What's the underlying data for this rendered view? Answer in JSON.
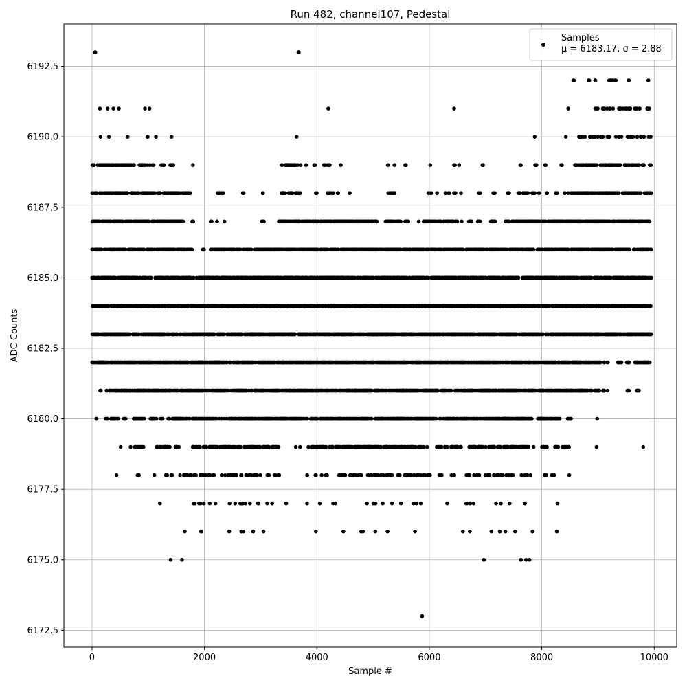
{
  "chart_data": {
    "type": "scatter",
    "title": "Run 482, channel107, Pedestal",
    "xlabel": "Sample #",
    "ylabel": "ADC Counts",
    "xlim": [
      -500,
      10400
    ],
    "ylim": [
      6171.9,
      6194.0
    ],
    "xticks": [
      0,
      2000,
      4000,
      6000,
      8000,
      10000
    ],
    "yticks": [
      6172.5,
      6175.0,
      6177.5,
      6180.0,
      6182.5,
      6185.0,
      6187.5,
      6190.0,
      6192.5
    ],
    "xtick_labels": [
      "0",
      "2000",
      "4000",
      "6000",
      "8000",
      "10000"
    ],
    "ytick_labels": [
      "6172.5",
      "6175.0",
      "6177.5",
      "6180.0",
      "6182.5",
      "6185.0",
      "6187.5",
      "6190.0",
      "6192.5"
    ],
    "grid": true,
    "legend_position": "top-right",
    "series": [
      {
        "name": "Samples",
        "color": "#000000",
        "marker": "circle",
        "stats_label": "μ = 6183.17, σ = 2.88",
        "sample_count": 10000,
        "level_ranges": [
          {
            "y": 6173,
            "x": [
              [
                5870,
                5870
              ]
            ]
          },
          {
            "y": 6175,
            "x": [
              [
                1400,
                1400
              ],
              [
                1600,
                1600
              ],
              [
                6970,
                6970
              ],
              [
                7630,
                7630
              ],
              [
                7720,
                7720
              ],
              [
                7780,
                7780
              ]
            ]
          },
          {
            "y": 6176,
            "x": [
              [
                1640,
                1700
              ],
              [
                1830,
                1970
              ],
              [
                2420,
                2480
              ],
              [
                2650,
                2730
              ],
              [
                2840,
                2870
              ],
              [
                3010,
                3070
              ],
              [
                3980,
                4050
              ],
              [
                4460,
                4490
              ],
              [
                4760,
                4850
              ],
              [
                5030,
                5090
              ],
              [
                5240,
                5270
              ],
              [
                5740,
                5760
              ],
              [
                6570,
                6610
              ],
              [
                6660,
                6730
              ],
              [
                7090,
                7110
              ],
              [
                7180,
                7260
              ],
              [
                7320,
                7390
              ],
              [
                7510,
                7530
              ],
              [
                7830,
                7850
              ],
              [
                8260,
                8270
              ]
            ]
          },
          {
            "y": 6177,
            "x": [
              [
                1200,
                1220
              ],
              [
                1800,
                2100
              ],
              [
                2150,
                2200
              ],
              [
                2440,
                2460
              ],
              [
                2500,
                2770
              ],
              [
                2800,
                2830
              ],
              [
                2920,
                3000
              ],
              [
                3090,
                3120
              ],
              [
                3190,
                3210
              ],
              [
                3450,
                3470
              ],
              [
                3810,
                3830
              ],
              [
                4050,
                4070
              ],
              [
                4250,
                4330
              ],
              [
                4880,
                4920
              ],
              [
                4980,
                5130
              ],
              [
                5160,
                5200
              ],
              [
                5330,
                5360
              ],
              [
                5470,
                5520
              ],
              [
                5710,
                5850
              ],
              [
                6260,
                6330
              ],
              [
                6640,
                6820
              ],
              [
                7170,
                7200
              ],
              [
                7270,
                7300
              ],
              [
                7410,
                7440
              ],
              [
                7700,
                7710
              ],
              [
                8280,
                8280
              ]
            ]
          },
          {
            "y": 6178,
            "x": [
              [
                420,
                440
              ],
              [
                800,
                850
              ],
              [
                1100,
                1120
              ],
              [
                1300,
                1340
              ],
              [
                1390,
                1430
              ],
              [
                1510,
                1780
              ],
              [
                1800,
                2110
              ],
              [
                2130,
                2190
              ],
              [
                2300,
                3000
              ],
              [
                3090,
                3190
              ],
              [
                3220,
                3330
              ],
              [
                3800,
                3840
              ],
              [
                3960,
                4000
              ],
              [
                4050,
                4190
              ],
              [
                4330,
                5350
              ],
              [
                5410,
                5480
              ],
              [
                5540,
                6040
              ],
              [
                6170,
                6260
              ],
              [
                6380,
                6470
              ],
              [
                6640,
                7490
              ],
              [
                7610,
                7810
              ],
              [
                8050,
                8090
              ],
              [
                8160,
                8270
              ],
              [
                8480,
                8500
              ]
            ]
          },
          {
            "y": 6179,
            "x": [
              [
                490,
                510
              ],
              [
                680,
                700
              ],
              [
                750,
                920
              ],
              [
                1150,
                1440
              ],
              [
                1480,
                1580
              ],
              [
                1780,
                3320
              ],
              [
                3620,
                3640
              ],
              [
                3700,
                3720
              ],
              [
                3820,
                4410
              ],
              [
                4440,
                6040
              ],
              [
                6120,
                6220
              ],
              [
                6260,
                7780
              ],
              [
                7850,
                7870
              ],
              [
                8000,
                8100
              ],
              [
                8200,
                8300
              ],
              [
                8360,
                8490
              ],
              [
                8970,
                8980
              ],
              [
                9800,
                9810
              ]
            ]
          },
          {
            "y": 6180,
            "x": [
              [
                60,
                80
              ],
              [
                240,
                280
              ],
              [
                330,
                490
              ],
              [
                550,
                600
              ],
              [
                740,
                940
              ],
              [
                1040,
                1150
              ],
              [
                1220,
                1260
              ],
              [
                1340,
                1390
              ],
              [
                1430,
                4010
              ],
              [
                4040,
                7820
              ],
              [
                7920,
                8320
              ],
              [
                8460,
                8520
              ],
              [
                8980,
                8990
              ]
            ]
          },
          {
            "y": 6181,
            "x": [
              [
                140,
                160
              ],
              [
                250,
                270
              ],
              [
                310,
                9030
              ],
              [
                9070,
                9120
              ],
              [
                9170,
                9180
              ],
              [
                9520,
                9550
              ],
              [
                9680,
                9740
              ]
            ]
          },
          {
            "y": 6182,
            "x": [
              [
                0,
                9050
              ],
              [
                9100,
                9120
              ],
              [
                9160,
                9180
              ],
              [
                9350,
                9420
              ],
              [
                9500,
                9570
              ],
              [
                9650,
                9920
              ]
            ]
          },
          {
            "y": 6183,
            "x": [
              [
                0,
                9950
              ]
            ]
          },
          {
            "y": 6184,
            "x": [
              [
                0,
                9950
              ]
            ]
          },
          {
            "y": 6185,
            "x": [
              [
                0,
                9950
              ]
            ]
          },
          {
            "y": 6186,
            "x": [
              [
                0,
                1780
              ],
              [
                1970,
                2010
              ],
              [
                2110,
                9950
              ]
            ]
          },
          {
            "y": 6187,
            "x": [
              [
                0,
                1620
              ],
              [
                1780,
                1810
              ],
              [
                2110,
                2130
              ],
              [
                2220,
                2240
              ],
              [
                2350,
                2360
              ],
              [
                3020,
                3060
              ],
              [
                3300,
                5070
              ],
              [
                5220,
                5500
              ],
              [
                5560,
                5640
              ],
              [
                5810,
                5820
              ],
              [
                5900,
                6500
              ],
              [
                6570,
                6580
              ],
              [
                6690,
                6760
              ],
              [
                6860,
                6920
              ],
              [
                7080,
                7180
              ],
              [
                7350,
                9950
              ]
            ]
          },
          {
            "y": 6188,
            "x": [
              [
                0,
                1570
              ],
              [
                1610,
                1790
              ],
              [
                2230,
                2340
              ],
              [
                2680,
                2700
              ],
              [
                3030,
                3050
              ],
              [
                3370,
                3730
              ],
              [
                3980,
                4000
              ],
              [
                4180,
                4300
              ],
              [
                4350,
                4380
              ],
              [
                4570,
                4590
              ],
              [
                5260,
                5400
              ],
              [
                5970,
                5990
              ],
              [
                6020,
                6040
              ],
              [
                6130,
                6140
              ],
              [
                6270,
                6300
              ],
              [
                6340,
                6360
              ],
              [
                6430,
                6470
              ],
              [
                6560,
                6570
              ],
              [
                6880,
                6920
              ],
              [
                7130,
                7170
              ],
              [
                7380,
                7440
              ],
              [
                7570,
                7760
              ],
              [
                7800,
                7880
              ],
              [
                7940,
                7970
              ],
              [
                8070,
                8100
              ],
              [
                8210,
                8290
              ],
              [
                8380,
                8420
              ],
              [
                8460,
                9950
              ]
            ]
          },
          {
            "y": 6189,
            "x": [
              [
                0,
                780
              ],
              [
                840,
                1100
              ],
              [
                1230,
                1300
              ],
              [
                1380,
                1470
              ],
              [
                1790,
                1810
              ],
              [
                3340,
                3720
              ],
              [
                3790,
                3810
              ],
              [
                3950,
                3980
              ],
              [
                4110,
                4230
              ],
              [
                4420,
                4440
              ],
              [
                5260,
                5280
              ],
              [
                5370,
                5390
              ],
              [
                5570,
                5600
              ],
              [
                6000,
                6020
              ],
              [
                6420,
                6470
              ],
              [
                6520,
                6540
              ],
              [
                6930,
                6960
              ],
              [
                7600,
                7630
              ],
              [
                7860,
                7920
              ],
              [
                8050,
                8090
              ],
              [
                8340,
                8370
              ],
              [
                8590,
                9950
              ]
            ]
          },
          {
            "y": 6190,
            "x": [
              [
                140,
                180
              ],
              [
                300,
                320
              ],
              [
                630,
                650
              ],
              [
                970,
                1040
              ],
              [
                1130,
                1140
              ],
              [
                1410,
                1420
              ],
              [
                3630,
                3670
              ],
              [
                7860,
                7880
              ],
              [
                8420,
                8440
              ],
              [
                8660,
                9950
              ]
            ]
          },
          {
            "y": 6191,
            "x": [
              [
                120,
                140
              ],
              [
                270,
                290
              ],
              [
                380,
                410
              ],
              [
                470,
                490
              ],
              [
                930,
                950
              ],
              [
                1010,
                1040
              ],
              [
                4200,
                4210
              ],
              [
                6440,
                6450
              ],
              [
                8470,
                8480
              ],
              [
                8840,
                9920
              ]
            ]
          },
          {
            "y": 6192,
            "x": [
              [
                8560,
                8580
              ],
              [
                8820,
                8880
              ],
              [
                8950,
                8970
              ],
              [
                9190,
                9260
              ],
              [
                9290,
                9330
              ],
              [
                9530,
                9550
              ],
              [
                9890,
                9900
              ]
            ]
          },
          {
            "y": 6193,
            "x": [
              [
                50,
                60
              ],
              [
                3670,
                3680
              ]
            ]
          }
        ]
      }
    ]
  }
}
